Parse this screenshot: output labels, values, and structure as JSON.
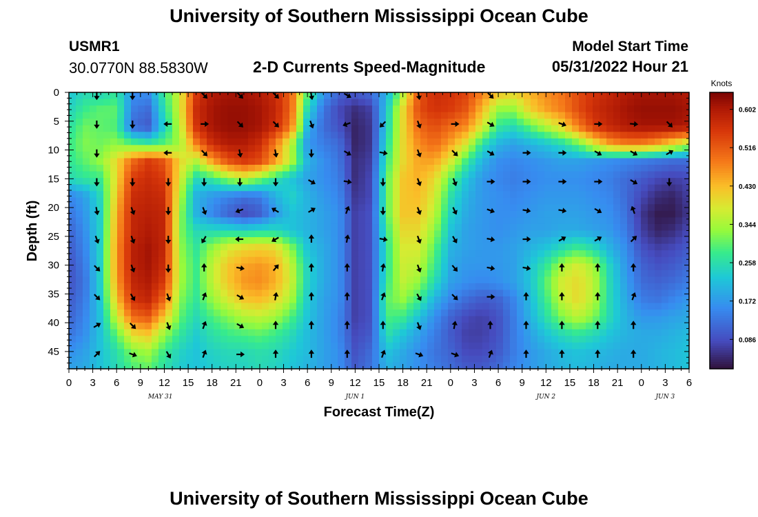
{
  "header": {
    "title": "University of Southern Mississippi Ocean Cube",
    "station_id": "USMR1",
    "station_coords": "30.0770N  88.5830W",
    "chart_title": "2-D Currents Speed-Magnitude",
    "model_start_label": "Model Start Time",
    "model_start_value": "05/31/2022 Hour 21"
  },
  "footer": {
    "title": "University of Southern Mississippi Ocean Cube"
  },
  "chart_data": {
    "type": "heatmap",
    "title": "2-D Currents Speed-Magnitude",
    "xlabel": "Forecast Time(Z)",
    "ylabel": "Depth (ft)",
    "colorbar_label": "Knots",
    "colorbar_ticks": [
      "0.602",
      "0.516",
      "0.430",
      "0.344",
      "0.258",
      "0.172",
      "0.086"
    ],
    "colorbar_values": [
      0.602,
      0.516,
      0.43,
      0.344,
      0.258,
      0.172,
      0.086
    ],
    "color_range": [
      0.02,
      0.64
    ],
    "x_ticks": [
      "0",
      "3",
      "6",
      "9",
      "12",
      "15",
      "18",
      "21",
      "0",
      "3",
      "6",
      "9",
      "12",
      "15",
      "18",
      "21",
      "0",
      "3",
      "6",
      "9",
      "12",
      "15",
      "18",
      "21",
      "0",
      "3",
      "6"
    ],
    "x_hours": [
      0,
      3,
      6,
      9,
      12,
      15,
      18,
      21,
      24,
      27,
      30,
      33,
      36,
      39,
      42,
      45,
      48,
      51,
      54,
      57,
      60,
      63,
      66,
      69,
      72,
      75,
      78
    ],
    "x_range": [
      0,
      78
    ],
    "date_labels": [
      {
        "text": "MAY 31",
        "hour": 11.5
      },
      {
        "text": "JUN 1",
        "hour": 36
      },
      {
        "text": "JUN 2",
        "hour": 60
      },
      {
        "text": "JUN 3",
        "hour": 75
      }
    ],
    "y_ticks": [
      "0",
      "5",
      "10",
      "15",
      "20",
      "25",
      "30",
      "35",
      "40",
      "45"
    ],
    "y_values": [
      0,
      5,
      10,
      15,
      20,
      25,
      30,
      35,
      40,
      45
    ],
    "y_range": [
      0,
      48
    ],
    "speed_hours": [
      0,
      2,
      4,
      6,
      8,
      10,
      12,
      14,
      16,
      18,
      20,
      22,
      24,
      26,
      28,
      30,
      32,
      34,
      36,
      38,
      40,
      42,
      44,
      46,
      48,
      50,
      52,
      54,
      56,
      58,
      60,
      62,
      64,
      66,
      68,
      70,
      72,
      74,
      76,
      78
    ],
    "speed_depths": [
      0,
      3,
      6,
      9,
      12,
      15,
      18,
      21,
      24,
      27,
      30,
      33,
      36,
      39,
      42,
      45,
      48
    ],
    "speed_grid": [
      [
        0.22,
        0.25,
        0.24,
        0.27,
        0.16,
        0.16,
        0.28,
        0.38,
        0.55,
        0.6,
        0.61,
        0.61,
        0.6,
        0.57,
        0.5,
        0.3,
        0.17,
        0.11,
        0.1,
        0.12,
        0.2,
        0.35,
        0.52,
        0.57,
        0.56,
        0.54,
        0.48,
        0.43,
        0.41,
        0.44,
        0.47,
        0.49,
        0.53,
        0.56,
        0.58,
        0.6,
        0.61,
        0.61,
        0.61,
        0.6
      ],
      [
        0.24,
        0.28,
        0.3,
        0.3,
        0.14,
        0.12,
        0.26,
        0.38,
        0.57,
        0.61,
        0.62,
        0.62,
        0.61,
        0.58,
        0.5,
        0.25,
        0.13,
        0.08,
        0.05,
        0.07,
        0.23,
        0.4,
        0.53,
        0.56,
        0.55,
        0.52,
        0.43,
        0.33,
        0.33,
        0.41,
        0.45,
        0.48,
        0.53,
        0.57,
        0.59,
        0.61,
        0.62,
        0.62,
        0.62,
        0.61
      ],
      [
        0.26,
        0.31,
        0.3,
        0.29,
        0.12,
        0.1,
        0.24,
        0.36,
        0.56,
        0.61,
        0.62,
        0.62,
        0.61,
        0.57,
        0.48,
        0.2,
        0.12,
        0.09,
        0.04,
        0.06,
        0.24,
        0.4,
        0.5,
        0.53,
        0.5,
        0.47,
        0.38,
        0.27,
        0.25,
        0.3,
        0.35,
        0.4,
        0.48,
        0.55,
        0.58,
        0.6,
        0.61,
        0.61,
        0.61,
        0.6
      ],
      [
        0.28,
        0.32,
        0.31,
        0.33,
        0.3,
        0.28,
        0.3,
        0.34,
        0.48,
        0.57,
        0.6,
        0.6,
        0.57,
        0.48,
        0.35,
        0.17,
        0.14,
        0.12,
        0.04,
        0.06,
        0.26,
        0.4,
        0.47,
        0.5,
        0.45,
        0.38,
        0.26,
        0.2,
        0.18,
        0.2,
        0.22,
        0.25,
        0.3,
        0.38,
        0.45,
        0.48,
        0.48,
        0.45,
        0.4,
        0.35
      ],
      [
        0.27,
        0.3,
        0.33,
        0.4,
        0.5,
        0.55,
        0.52,
        0.4,
        0.35,
        0.45,
        0.52,
        0.55,
        0.53,
        0.45,
        0.35,
        0.2,
        0.16,
        0.13,
        0.05,
        0.07,
        0.28,
        0.4,
        0.45,
        0.45,
        0.38,
        0.28,
        0.2,
        0.16,
        0.15,
        0.16,
        0.17,
        0.18,
        0.18,
        0.17,
        0.16,
        0.15,
        0.14,
        0.13,
        0.12,
        0.12
      ],
      [
        0.25,
        0.27,
        0.28,
        0.4,
        0.55,
        0.57,
        0.55,
        0.38,
        0.25,
        0.27,
        0.33,
        0.36,
        0.32,
        0.26,
        0.22,
        0.18,
        0.16,
        0.14,
        0.05,
        0.08,
        0.3,
        0.42,
        0.44,
        0.4,
        0.3,
        0.22,
        0.17,
        0.15,
        0.14,
        0.15,
        0.16,
        0.16,
        0.16,
        0.15,
        0.14,
        0.12,
        0.1,
        0.08,
        0.07,
        0.08
      ],
      [
        0.15,
        0.18,
        0.25,
        0.42,
        0.57,
        0.58,
        0.57,
        0.35,
        0.2,
        0.17,
        0.15,
        0.13,
        0.14,
        0.2,
        0.24,
        0.2,
        0.17,
        0.15,
        0.06,
        0.08,
        0.3,
        0.42,
        0.43,
        0.38,
        0.26,
        0.2,
        0.17,
        0.16,
        0.15,
        0.16,
        0.17,
        0.17,
        0.17,
        0.16,
        0.15,
        0.12,
        0.08,
        0.05,
        0.04,
        0.07
      ],
      [
        0.13,
        0.17,
        0.24,
        0.44,
        0.58,
        0.59,
        0.58,
        0.33,
        0.2,
        0.15,
        0.11,
        0.08,
        0.1,
        0.17,
        0.22,
        0.2,
        0.18,
        0.16,
        0.07,
        0.09,
        0.3,
        0.42,
        0.42,
        0.36,
        0.24,
        0.19,
        0.17,
        0.16,
        0.16,
        0.17,
        0.18,
        0.18,
        0.18,
        0.17,
        0.16,
        0.13,
        0.06,
        0.03,
        0.03,
        0.06
      ],
      [
        0.11,
        0.16,
        0.24,
        0.45,
        0.58,
        0.6,
        0.58,
        0.32,
        0.25,
        0.25,
        0.25,
        0.24,
        0.25,
        0.25,
        0.22,
        0.2,
        0.18,
        0.16,
        0.07,
        0.09,
        0.28,
        0.4,
        0.4,
        0.33,
        0.22,
        0.18,
        0.17,
        0.16,
        0.17,
        0.18,
        0.18,
        0.19,
        0.19,
        0.18,
        0.17,
        0.14,
        0.07,
        0.04,
        0.05,
        0.08
      ],
      [
        0.1,
        0.15,
        0.24,
        0.46,
        0.59,
        0.61,
        0.58,
        0.33,
        0.27,
        0.33,
        0.38,
        0.4,
        0.41,
        0.4,
        0.32,
        0.22,
        0.19,
        0.16,
        0.07,
        0.09,
        0.27,
        0.38,
        0.38,
        0.3,
        0.2,
        0.18,
        0.17,
        0.17,
        0.18,
        0.2,
        0.22,
        0.25,
        0.28,
        0.25,
        0.2,
        0.16,
        0.09,
        0.07,
        0.08,
        0.1
      ],
      [
        0.09,
        0.14,
        0.24,
        0.46,
        0.59,
        0.61,
        0.57,
        0.34,
        0.28,
        0.36,
        0.42,
        0.45,
        0.46,
        0.44,
        0.36,
        0.24,
        0.19,
        0.16,
        0.07,
        0.09,
        0.27,
        0.37,
        0.36,
        0.28,
        0.19,
        0.17,
        0.17,
        0.17,
        0.18,
        0.22,
        0.27,
        0.34,
        0.38,
        0.34,
        0.24,
        0.17,
        0.11,
        0.09,
        0.1,
        0.12
      ],
      [
        0.09,
        0.13,
        0.24,
        0.45,
        0.58,
        0.6,
        0.55,
        0.34,
        0.28,
        0.36,
        0.42,
        0.46,
        0.47,
        0.44,
        0.37,
        0.24,
        0.19,
        0.16,
        0.07,
        0.09,
        0.28,
        0.36,
        0.33,
        0.25,
        0.18,
        0.16,
        0.15,
        0.16,
        0.18,
        0.22,
        0.3,
        0.38,
        0.4,
        0.36,
        0.25,
        0.18,
        0.12,
        0.11,
        0.12,
        0.14
      ],
      [
        0.1,
        0.14,
        0.23,
        0.42,
        0.56,
        0.58,
        0.5,
        0.32,
        0.27,
        0.33,
        0.38,
        0.42,
        0.43,
        0.4,
        0.34,
        0.23,
        0.18,
        0.16,
        0.07,
        0.09,
        0.3,
        0.33,
        0.28,
        0.2,
        0.15,
        0.12,
        0.1,
        0.11,
        0.15,
        0.21,
        0.28,
        0.36,
        0.4,
        0.35,
        0.25,
        0.19,
        0.14,
        0.13,
        0.15,
        0.17
      ],
      [
        0.11,
        0.15,
        0.22,
        0.37,
        0.5,
        0.52,
        0.42,
        0.3,
        0.25,
        0.29,
        0.32,
        0.35,
        0.36,
        0.34,
        0.29,
        0.22,
        0.18,
        0.15,
        0.07,
        0.09,
        0.29,
        0.28,
        0.22,
        0.16,
        0.11,
        0.08,
        0.07,
        0.09,
        0.14,
        0.2,
        0.26,
        0.32,
        0.36,
        0.32,
        0.25,
        0.2,
        0.17,
        0.17,
        0.18,
        0.19
      ],
      [
        0.13,
        0.16,
        0.22,
        0.3,
        0.4,
        0.42,
        0.33,
        0.27,
        0.23,
        0.26,
        0.28,
        0.29,
        0.3,
        0.28,
        0.25,
        0.21,
        0.18,
        0.15,
        0.08,
        0.1,
        0.26,
        0.22,
        0.18,
        0.14,
        0.1,
        0.07,
        0.07,
        0.09,
        0.14,
        0.18,
        0.22,
        0.25,
        0.27,
        0.25,
        0.22,
        0.2,
        0.19,
        0.19,
        0.2,
        0.21
      ],
      [
        0.16,
        0.18,
        0.22,
        0.26,
        0.32,
        0.34,
        0.28,
        0.24,
        0.22,
        0.24,
        0.25,
        0.25,
        0.26,
        0.25,
        0.23,
        0.21,
        0.18,
        0.16,
        0.09,
        0.12,
        0.22,
        0.19,
        0.16,
        0.13,
        0.11,
        0.08,
        0.08,
        0.1,
        0.14,
        0.17,
        0.19,
        0.21,
        0.22,
        0.21,
        0.2,
        0.19,
        0.19,
        0.2,
        0.21,
        0.22
      ],
      [
        0.18,
        0.19,
        0.22,
        0.25,
        0.29,
        0.3,
        0.26,
        0.23,
        0.22,
        0.23,
        0.24,
        0.24,
        0.25,
        0.24,
        0.22,
        0.2,
        0.18,
        0.16,
        0.1,
        0.13,
        0.2,
        0.18,
        0.16,
        0.14,
        0.12,
        0.1,
        0.1,
        0.12,
        0.15,
        0.17,
        0.19,
        0.2,
        0.21,
        0.2,
        0.19,
        0.19,
        0.19,
        0.2,
        0.21,
        0.22
      ]
    ],
    "arrow_hours": [
      3.5,
      8.0,
      12.5,
      17.0,
      21.5,
      26.0,
      30.5,
      35.0,
      39.5,
      44.0,
      48.5,
      53.0,
      57.5,
      62.0,
      66.5,
      71.0,
      75.5
    ],
    "arrow_depths": [
      0.5,
      5.5,
      10.5,
      15.5,
      20.5,
      25.5,
      30.5,
      35.5,
      40.5,
      45.5
    ],
    "arrow_dirs_deg": [
      [
        180,
        180,
        null,
        135,
        135,
        135,
        170,
        120,
        null,
        170,
        null,
        135,
        null,
        null,
        null,
        null,
        null
      ],
      [
        180,
        180,
        270,
        90,
        135,
        135,
        160,
        250,
        225,
        160,
        90,
        120,
        null,
        110,
        90,
        95,
        135
      ],
      [
        180,
        null,
        270,
        135,
        170,
        170,
        180,
        120,
        100,
        160,
        135,
        120,
        90,
        90,
        120,
        120,
        60
      ],
      [
        180,
        180,
        180,
        180,
        180,
        180,
        120,
        100,
        180,
        160,
        160,
        90,
        90,
        90,
        90,
        120,
        180
      ],
      [
        170,
        160,
        180,
        160,
        250,
        300,
        60,
        20,
        180,
        160,
        155,
        110,
        100,
        100,
        120,
        340,
        null
      ],
      [
        160,
        160,
        180,
        210,
        270,
        240,
        0,
        10,
        100,
        160,
        150,
        100,
        90,
        60,
        60,
        45,
        null
      ],
      [
        135,
        160,
        180,
        0,
        100,
        40,
        0,
        0,
        10,
        160,
        140,
        100,
        100,
        0,
        0,
        0,
        null
      ],
      [
        135,
        150,
        160,
        20,
        120,
        10,
        0,
        0,
        20,
        150,
        135,
        90,
        0,
        0,
        0,
        20,
        null
      ],
      [
        60,
        135,
        160,
        20,
        120,
        0,
        0,
        0,
        0,
        160,
        10,
        0,
        0,
        0,
        0,
        0,
        null
      ],
      [
        45,
        110,
        150,
        20,
        90,
        0,
        0,
        0,
        20,
        110,
        110,
        20,
        0,
        0,
        0,
        0,
        null
      ]
    ]
  }
}
